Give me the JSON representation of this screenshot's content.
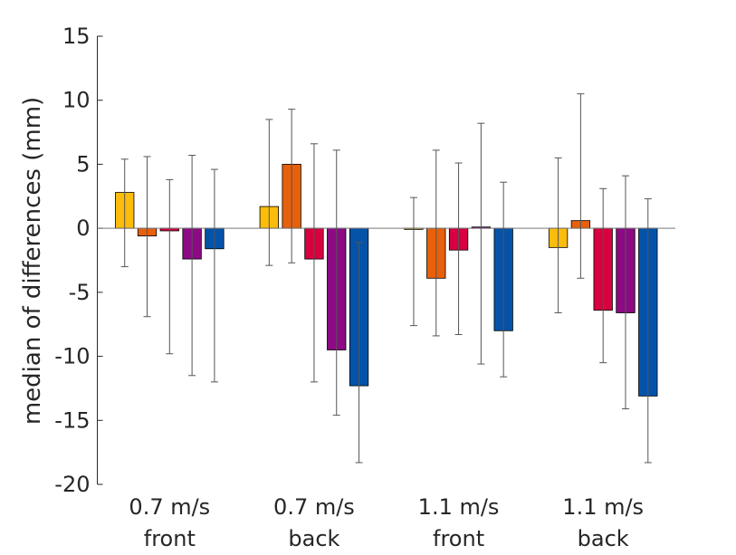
{
  "chart_data": {
    "type": "bar",
    "title": "",
    "xlabel": "",
    "ylabel": "median of differences (mm)",
    "ylim": [
      -20,
      15
    ],
    "yticks": [
      15,
      10,
      5,
      0,
      -5,
      -10,
      -15,
      -20
    ],
    "ytick_labels": [
      "15",
      "10",
      "5",
      "0",
      "-5",
      "-10",
      "-15",
      "-20"
    ],
    "categories": [
      {
        "line1": "0.7 m/s",
        "line2": "front"
      },
      {
        "line1": "0.7 m/s",
        "line2": "back"
      },
      {
        "line1": "1.1 m/s",
        "line2": "front"
      },
      {
        "line1": "1.1 m/s",
        "line2": "back"
      }
    ],
    "series": [
      {
        "color": "#FBBC0C",
        "values": [
          2.8,
          1.7,
          0.0,
          -1.5
        ],
        "err_low": [
          -3.0,
          -2.9,
          -7.6,
          -6.6
        ],
        "err_high": [
          5.4,
          8.5,
          2.4,
          5.5
        ]
      },
      {
        "color": "#E7600B",
        "values": [
          -0.6,
          5.0,
          -3.9,
          0.6
        ],
        "err_low": [
          -6.9,
          -2.7,
          -8.4,
          -3.9
        ],
        "err_high": [
          5.6,
          9.3,
          6.1,
          10.5
        ]
      },
      {
        "color": "#D8003F",
        "values": [
          -0.2,
          -2.4,
          -1.7,
          -6.4
        ],
        "err_low": [
          -9.8,
          -12.0,
          -8.3,
          -10.5
        ],
        "err_high": [
          3.8,
          6.6,
          5.1,
          3.1
        ]
      },
      {
        "color": "#8C0A83",
        "values": [
          -2.4,
          -9.5,
          0.1,
          -6.6
        ],
        "err_low": [
          -11.5,
          -14.6,
          -10.6,
          -14.1
        ],
        "err_high": [
          5.7,
          6.1,
          8.2,
          4.1
        ]
      },
      {
        "color": "#0453A9",
        "values": [
          -1.6,
          -12.3,
          -8.0,
          -13.1
        ],
        "err_low": [
          -12.0,
          -18.3,
          -11.6,
          -18.3
        ],
        "err_high": [
          4.6,
          -1.1,
          3.6,
          2.3
        ]
      }
    ]
  }
}
